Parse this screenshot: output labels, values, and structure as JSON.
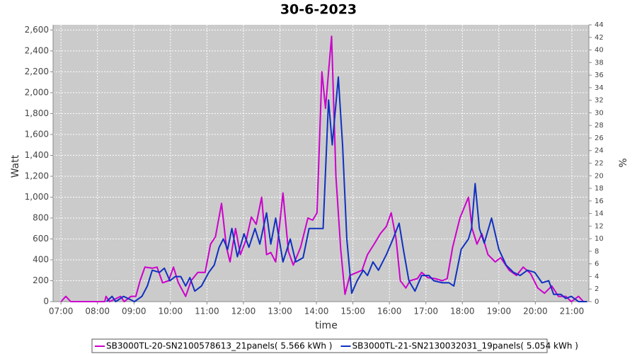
{
  "chart_data": {
    "type": "line",
    "title": "30-6-2023",
    "x_label": "time",
    "y_label": "Watt",
    "y2_label": "%",
    "xlim": [
      "06:47",
      "21:28"
    ],
    "xticks": [
      "07:00",
      "08:00",
      "09:00",
      "10:00",
      "11:00",
      "12:00",
      "13:00",
      "14:00",
      "15:00",
      "16:00",
      "17:00",
      "18:00",
      "19:00",
      "20:00",
      "21:00"
    ],
    "ylim": [
      0,
      2650
    ],
    "yticks": [
      0,
      200,
      400,
      600,
      800,
      {
        "value": 1000,
        "label": "1,000"
      },
      {
        "value": 1200,
        "label": "1,200"
      },
      {
        "value": 1400,
        "label": "1,400"
      },
      {
        "value": 1600,
        "label": "1,600"
      },
      {
        "value": 1800,
        "label": "1,800"
      },
      {
        "value": 2000,
        "label": "2,000"
      },
      {
        "value": 2200,
        "label": "2,200"
      },
      {
        "value": 2400,
        "label": "2,400"
      },
      {
        "value": 2600,
        "label": "2,600"
      }
    ],
    "y2lim": [
      0,
      44
    ],
    "y2ticks": [
      0,
      2,
      4,
      6,
      8,
      10,
      12,
      14,
      16,
      18,
      20,
      22,
      24,
      26,
      28,
      30,
      32,
      34,
      36,
      38,
      40,
      42,
      44
    ],
    "grid": true,
    "background": "#cbcbcb",
    "legend": "bottom",
    "series": [
      {
        "name": "SB3000TL-20-SN2100578613_21panels( 5.566 kWh )",
        "color": "#cc00cc",
        "x": [
          "07:00",
          "07:08",
          "07:16",
          "08:12",
          "08:14",
          "08:20",
          "08:38",
          "08:44",
          "08:55",
          "09:03",
          "09:10",
          "09:18",
          "09:30",
          "09:38",
          "09:47",
          "09:57",
          "10:05",
          "10:13",
          "10:25",
          "10:34",
          "10:45",
          "10:57",
          "11:06",
          "11:14",
          "11:24",
          "11:32",
          "11:38",
          "11:47",
          "11:55",
          "12:05",
          "12:13",
          "12:21",
          "12:30",
          "12:38",
          "12:45",
          "12:53",
          "13:05",
          "13:14",
          "13:22",
          "13:34",
          "13:46",
          "13:54",
          "14:01",
          "14:09",
          "14:15",
          "14:20",
          "14:25",
          "14:32",
          "14:40",
          "14:47",
          "14:55",
          "15:07",
          "15:15",
          "15:24",
          "15:36",
          "15:45",
          "15:55",
          "16:03",
          "16:11",
          "16:18",
          "16:27",
          "16:34",
          "16:46",
          "16:53",
          "17:03",
          "17:15",
          "17:27",
          "17:35",
          "17:44",
          "17:56",
          "18:10",
          "18:16",
          "18:24",
          "18:32",
          "18:42",
          "18:54",
          "19:03",
          "19:17",
          "19:29",
          "19:40",
          "19:52",
          "20:04",
          "20:15",
          "20:27",
          "20:38",
          "20:50",
          "20:59",
          "21:11",
          "21:19"
        ],
        "values": [
          0,
          50,
          0,
          0,
          50,
          0,
          50,
          0,
          50,
          50,
          200,
          330,
          320,
          330,
          180,
          200,
          330,
          180,
          50,
          200,
          280,
          280,
          550,
          620,
          940,
          520,
          380,
          700,
          450,
          600,
          810,
          740,
          1000,
          450,
          470,
          380,
          1040,
          480,
          350,
          520,
          800,
          780,
          850,
          2200,
          1850,
          2200,
          2540,
          1200,
          500,
          70,
          250,
          280,
          300,
          450,
          560,
          650,
          720,
          850,
          600,
          200,
          130,
          200,
          220,
          280,
          230,
          220,
          200,
          220,
          520,
          800,
          1000,
          700,
          550,
          650,
          450,
          380,
          420,
          300,
          250,
          330,
          270,
          130,
          80,
          150,
          50,
          50,
          0,
          50,
          0
        ]
      },
      {
        "name": "SB3000TL-21-SN2130032031_19panels( 5.054 kWh )",
        "color": "#1030c0",
        "x": [
          "08:15",
          "08:24",
          "08:30",
          "08:43",
          "09:01",
          "09:13",
          "09:22",
          "09:30",
          "09:42",
          "09:50",
          "09:59",
          "10:08",
          "10:17",
          "10:25",
          "10:32",
          "10:40",
          "10:51",
          "11:03",
          "11:12",
          "11:20",
          "11:27",
          "11:34",
          "11:41",
          "11:50",
          "12:01",
          "12:09",
          "12:19",
          "12:27",
          "12:38",
          "12:45",
          "12:53",
          "13:05",
          "13:17",
          "13:26",
          "13:38",
          "13:48",
          "13:57",
          "14:11",
          "14:20",
          "14:26",
          "14:36",
          "14:43",
          "14:50",
          "14:58",
          "15:07",
          "15:17",
          "15:24",
          "15:33",
          "15:42",
          "15:55",
          "16:06",
          "16:16",
          "16:23",
          "16:32",
          "16:42",
          "16:53",
          "17:05",
          "17:13",
          "17:27",
          "17:38",
          "17:46",
          "17:58",
          "18:10",
          "18:15",
          "18:21",
          "18:28",
          "18:36",
          "18:48",
          "19:00",
          "19:12",
          "19:24",
          "19:35",
          "19:47",
          "19:59",
          "20:11",
          "20:22",
          "20:30",
          "20:42",
          "20:50",
          "20:59",
          "21:11",
          "21:25"
        ],
        "values": [
          0,
          50,
          0,
          50,
          0,
          50,
          150,
          300,
          280,
          320,
          200,
          240,
          240,
          150,
          230,
          100,
          150,
          280,
          350,
          520,
          600,
          500,
          700,
          430,
          650,
          520,
          700,
          550,
          850,
          550,
          800,
          380,
          600,
          380,
          420,
          700,
          700,
          700,
          1930,
          1500,
          2150,
          1500,
          600,
          80,
          200,
          300,
          250,
          380,
          300,
          450,
          600,
          750,
          500,
          200,
          100,
          250,
          250,
          200,
          180,
          180,
          150,
          500,
          600,
          700,
          1130,
          700,
          560,
          800,
          500,
          350,
          280,
          250,
          300,
          280,
          180,
          200,
          70,
          70,
          30,
          50,
          0,
          0
        ]
      }
    ]
  }
}
